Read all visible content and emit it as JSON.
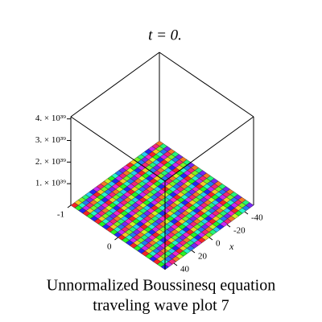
{
  "chart_data": {
    "type": "surface3d",
    "title": "t = 0.",
    "caption": [
      "Unnormalized Boussinesq equation",
      "traveling wave plot 7"
    ],
    "xlabel": "x",
    "xlim": [
      -50,
      50
    ],
    "xticks": [
      -40,
      -20,
      0,
      20,
      40
    ],
    "ylim": [
      -1,
      1
    ],
    "yticks": [
      -1,
      0
    ],
    "zlim": [
      0,
      4.1e+39
    ],
    "zticks": [
      {
        "value": 1e+39,
        "label": "1. × 10³⁹"
      },
      {
        "value": 2e+39,
        "label": "2. × 10³⁹"
      },
      {
        "value": 3e+39,
        "label": "3. × 10³⁹"
      },
      {
        "value": 4e+39,
        "label": "4. × 10³⁹"
      }
    ]
  }
}
